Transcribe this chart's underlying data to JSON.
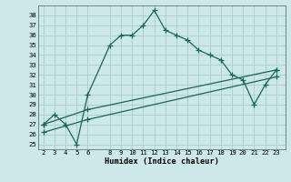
{
  "xlabel": "Humidex (Indice chaleur)",
  "x_ticks": [
    2,
    3,
    4,
    5,
    6,
    8,
    9,
    10,
    11,
    12,
    13,
    14,
    15,
    16,
    17,
    18,
    19,
    20,
    21,
    22,
    23
  ],
  "ylim": [
    24.5,
    39.0
  ],
  "xlim": [
    1.5,
    23.8
  ],
  "yticks": [
    25,
    26,
    27,
    28,
    29,
    30,
    31,
    32,
    33,
    34,
    35,
    36,
    37,
    38
  ],
  "line1_x": [
    2,
    3,
    4,
    5,
    6,
    8,
    9,
    10,
    11,
    12,
    13,
    14,
    15,
    16,
    17,
    18,
    19,
    20,
    21,
    22,
    23
  ],
  "line1_y": [
    27.0,
    28.0,
    27.0,
    25.0,
    30.0,
    35.0,
    36.0,
    36.0,
    37.0,
    38.5,
    36.5,
    36.0,
    35.5,
    34.5,
    34.0,
    33.5,
    32.0,
    31.5,
    29.0,
    31.0,
    32.5
  ],
  "line2_x": [
    2,
    6,
    23
  ],
  "line2_y": [
    27.0,
    28.5,
    32.5
  ],
  "line3_x": [
    2,
    6,
    23
  ],
  "line3_y": [
    26.2,
    27.5,
    31.8
  ],
  "bg_color": "#cce8e8",
  "grid_color": "#aacccc",
  "line_color": "#1a6655",
  "marker": "+",
  "ms": 4,
  "lw": 0.9,
  "tick_fs": 5.2,
  "xlabel_fs": 6.2
}
